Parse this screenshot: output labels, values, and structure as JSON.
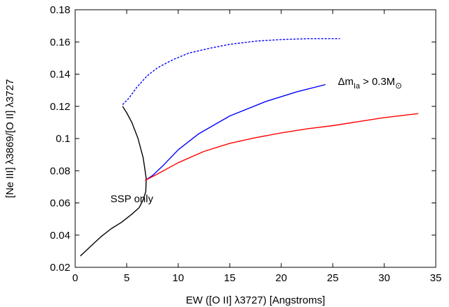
{
  "chart_data": {
    "type": "line",
    "xlabel": "EW ([O II] λ3727) [Angstroms]",
    "ylabel": "[Ne III] λ3869/[O II] λ3727",
    "xlim": [
      0,
      35
    ],
    "ylim": [
      0.02,
      0.18
    ],
    "xticks": [
      0,
      5,
      10,
      15,
      20,
      25,
      30,
      35
    ],
    "yticks": [
      0.02,
      0.04,
      0.06,
      0.08,
      0.1,
      0.12,
      0.14,
      0.16,
      0.18
    ],
    "xtick_labels": [
      "0",
      "5",
      "10",
      "15",
      "20",
      "25",
      "30",
      "35"
    ],
    "ytick_labels": [
      "0.02",
      "0.04",
      "0.06",
      "0.08",
      "0.1",
      "0.12",
      "0.14",
      "0.16",
      "0.18"
    ],
    "grid": false,
    "series": [
      {
        "color": "#000000",
        "style": "solid",
        "x": [
          0.5,
          1.5,
          2.5,
          3.5,
          4.5,
          5.5,
          6.2,
          6.6,
          6.85,
          6.9,
          6.6,
          6.1,
          5.5,
          5.0,
          4.6
        ],
        "y": [
          0.027,
          0.033,
          0.039,
          0.044,
          0.048,
          0.053,
          0.057,
          0.062,
          0.067,
          0.075,
          0.088,
          0.1,
          0.11,
          0.116,
          0.12
        ]
      },
      {
        "color": "#0000ff",
        "style": "dashed",
        "x": [
          4.6,
          5.2,
          6.0,
          7.0,
          8.0,
          9.5,
          11.0,
          13.0,
          15.0,
          17.5,
          20.0,
          22.5,
          25.7
        ],
        "y": [
          0.121,
          0.125,
          0.132,
          0.139,
          0.144,
          0.149,
          0.153,
          0.156,
          0.1585,
          0.1605,
          0.1615,
          0.162,
          0.162
        ]
      },
      {
        "color": "#0000ff",
        "style": "solid",
        "x": [
          6.8,
          7.5,
          8.5,
          10.0,
          12.0,
          15.0,
          18.5,
          21.5,
          24.3
        ],
        "y": [
          0.074,
          0.077,
          0.083,
          0.093,
          0.103,
          0.114,
          0.123,
          0.129,
          0.1335
        ]
      },
      {
        "color": "#ff0000",
        "style": "solid",
        "x": [
          6.8,
          8.0,
          10.0,
          12.5,
          15.0,
          17.5,
          20.0,
          22.5,
          25.0,
          27.5,
          30.0,
          33.3
        ],
        "y": [
          0.074,
          0.078,
          0.085,
          0.092,
          0.097,
          0.1005,
          0.1035,
          0.106,
          0.108,
          0.1105,
          0.113,
          0.1155
        ]
      }
    ],
    "annotations": [
      {
        "text": "SSP only",
        "x": 5.5,
        "y": 0.0625
      },
      {
        "text_main": "Δm",
        "text_sub": "Ia",
        "text_mid": " > 0.3M",
        "text_sun": "⊙",
        "x": 25.5,
        "y": 0.1355
      }
    ]
  }
}
